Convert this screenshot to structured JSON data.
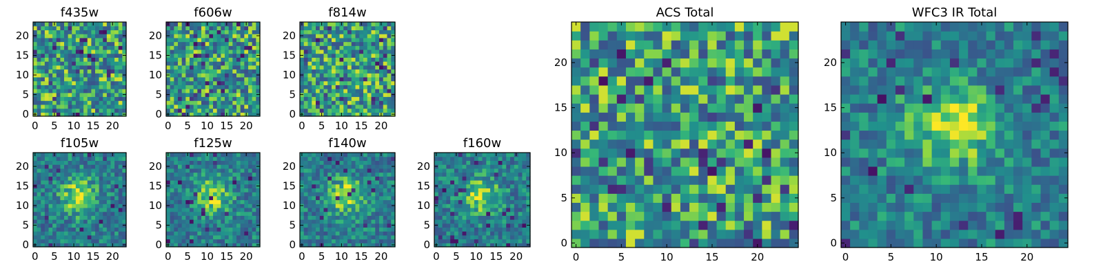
{
  "chart_data": [
    {
      "type": "heatmap",
      "title": "f435w",
      "size": 24,
      "xticks": [
        0,
        5,
        10,
        15,
        20
      ],
      "yticks": [
        0,
        5,
        10,
        15,
        20
      ],
      "seed": 11,
      "mode": "noisy",
      "colormap": "viridis"
    },
    {
      "type": "heatmap",
      "title": "f606w",
      "size": 24,
      "xticks": [
        0,
        5,
        10,
        15,
        20
      ],
      "yticks": [
        0,
        5,
        10,
        15,
        20
      ],
      "seed": 23,
      "mode": "noisy",
      "colormap": "viridis"
    },
    {
      "type": "heatmap",
      "title": "f814w",
      "size": 24,
      "xticks": [
        0,
        5,
        10,
        15,
        20
      ],
      "yticks": [
        0,
        5,
        10,
        15,
        20
      ],
      "seed": 37,
      "mode": "noisy",
      "colormap": "viridis"
    },
    {
      "type": "heatmap",
      "title": "f105w",
      "size": 24,
      "xticks": [
        0,
        5,
        10,
        15,
        20
      ],
      "yticks": [
        0,
        5,
        10,
        15,
        20
      ],
      "seed": 41,
      "mode": "source",
      "colormap": "viridis"
    },
    {
      "type": "heatmap",
      "title": "f125w",
      "size": 24,
      "xticks": [
        0,
        5,
        10,
        15,
        20
      ],
      "yticks": [
        0,
        5,
        10,
        15,
        20
      ],
      "seed": 53,
      "mode": "source",
      "colormap": "viridis"
    },
    {
      "type": "heatmap",
      "title": "f140w",
      "size": 24,
      "xticks": [
        0,
        5,
        10,
        15,
        20
      ],
      "yticks": [
        0,
        5,
        10,
        15,
        20
      ],
      "seed": 67,
      "mode": "source",
      "colormap": "viridis"
    },
    {
      "type": "heatmap",
      "title": "f160w",
      "size": 24,
      "xticks": [
        0,
        5,
        10,
        15,
        20
      ],
      "yticks": [
        0,
        5,
        10,
        15,
        20
      ],
      "seed": 79,
      "mode": "source",
      "colormap": "viridis"
    },
    {
      "type": "heatmap",
      "title": "ACS Total",
      "size": 25,
      "xticks": [
        0,
        5,
        10,
        15,
        20
      ],
      "yticks": [
        0,
        5,
        10,
        15,
        20
      ],
      "seed": 97,
      "mode": "noisy",
      "colormap": "viridis"
    },
    {
      "type": "heatmap",
      "title": "WFC3 IR Total",
      "size": 25,
      "xticks": [
        0,
        5,
        10,
        15,
        20
      ],
      "yticks": [
        0,
        5,
        10,
        15,
        20
      ],
      "seed": 113,
      "mode": "source",
      "colormap": "viridis"
    }
  ]
}
